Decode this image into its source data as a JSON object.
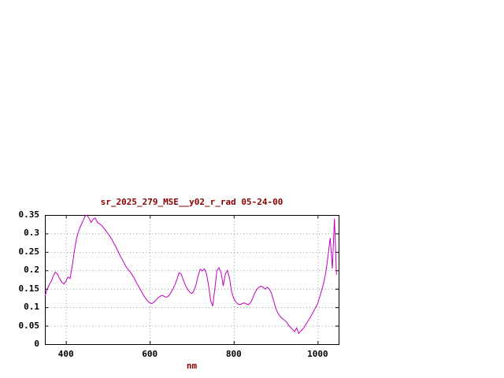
{
  "window": {
    "background_color": "#ffffff"
  },
  "chart": {
    "title": "sr_2025_279_MSE__y02_r_rad 05-24-00",
    "xlabel": "nm",
    "title_color": "#8b0000",
    "tick_label_color": "#000000",
    "border_color": "#000000",
    "grid_color": "#9a9a9a"
  },
  "chart_data": {
    "type": "line",
    "title": "sr_2025_279_MSE__y02_r_rad 05-24-00",
    "xlabel": "nm",
    "ylabel": "",
    "xlim": [
      350,
      1050
    ],
    "ylim": [
      0,
      0.35
    ],
    "xticks": [
      400,
      600,
      800,
      1000
    ],
    "xtick_labels": [
      "400",
      "600",
      "800",
      "1000"
    ],
    "yticks": [
      0,
      0.05,
      0.1,
      0.15,
      0.2,
      0.25,
      0.3,
      0.35
    ],
    "ytick_labels": [
      "0",
      "0.05",
      "0.1",
      "0.15",
      "0.2",
      "0.25",
      "0.3",
      "0.35"
    ],
    "grid": true,
    "legend": "none",
    "line_color": "#c000c0",
    "x_start": 350,
    "x_step": 5,
    "values": [
      0.13,
      0.148,
      0.16,
      0.17,
      0.185,
      0.195,
      0.19,
      0.178,
      0.168,
      0.163,
      0.17,
      0.182,
      0.178,
      0.21,
      0.25,
      0.285,
      0.305,
      0.32,
      0.332,
      0.345,
      0.35,
      0.342,
      0.33,
      0.338,
      0.342,
      0.33,
      0.326,
      0.322,
      0.315,
      0.308,
      0.3,
      0.292,
      0.283,
      0.272,
      0.262,
      0.25,
      0.238,
      0.228,
      0.217,
      0.207,
      0.2,
      0.193,
      0.184,
      0.174,
      0.163,
      0.153,
      0.143,
      0.133,
      0.124,
      0.117,
      0.112,
      0.11,
      0.114,
      0.12,
      0.126,
      0.13,
      0.132,
      0.129,
      0.127,
      0.131,
      0.139,
      0.149,
      0.161,
      0.176,
      0.194,
      0.189,
      0.174,
      0.159,
      0.149,
      0.141,
      0.137,
      0.144,
      0.16,
      0.184,
      0.203,
      0.198,
      0.204,
      0.192,
      0.16,
      0.118,
      0.103,
      0.15,
      0.2,
      0.207,
      0.193,
      0.158,
      0.19,
      0.2,
      0.178,
      0.142,
      0.124,
      0.114,
      0.109,
      0.107,
      0.11,
      0.112,
      0.109,
      0.107,
      0.112,
      0.124,
      0.138,
      0.148,
      0.154,
      0.157,
      0.154,
      0.149,
      0.154,
      0.149,
      0.138,
      0.118,
      0.098,
      0.085,
      0.076,
      0.07,
      0.066,
      0.061,
      0.052,
      0.046,
      0.04,
      0.034,
      0.044,
      0.029,
      0.036,
      0.041,
      0.05,
      0.059,
      0.068,
      0.078,
      0.088,
      0.099,
      0.11,
      0.128,
      0.148,
      0.168,
      0.198,
      0.242,
      0.288,
      0.205,
      0.34,
      0.188
    ]
  }
}
